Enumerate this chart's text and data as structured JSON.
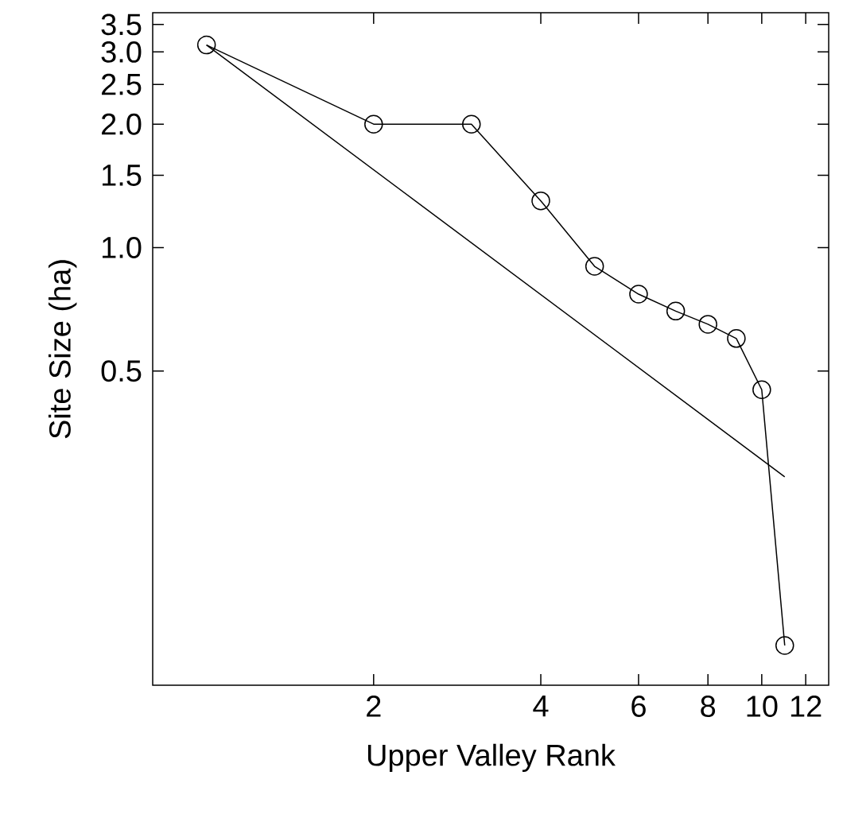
{
  "chart_data": {
    "type": "line",
    "xlabel": "Upper Valley Rank",
    "ylabel": "Site Size (ha)",
    "log": "xy",
    "xlim": [
      0.8,
      13.2
    ],
    "ylim": [
      0.0856,
      3.74
    ],
    "xticks": [
      2,
      4,
      6,
      8,
      10,
      12
    ],
    "yticks": [
      0.5,
      {
        "value": 1,
        "label": "1.0"
      },
      1.5,
      {
        "value": 2,
        "label": "2.0"
      },
      2.5,
      {
        "value": 3,
        "label": "3.0"
      },
      3.5
    ],
    "series": [
      {
        "color": "#000000",
        "marker": "circle",
        "x": [
          1,
          2,
          3,
          4,
          5,
          6,
          7,
          8,
          9,
          10,
          11
        ],
        "values": [
          3.12,
          2.0,
          2.0,
          1.3,
          0.9,
          0.77,
          0.7,
          0.65,
          0.6,
          0.45,
          0.107
        ]
      },
      {
        "color": "#000000",
        "marker": "none",
        "x": [
          1,
          11
        ],
        "values": [
          3.12,
          0.276
        ]
      }
    ]
  }
}
